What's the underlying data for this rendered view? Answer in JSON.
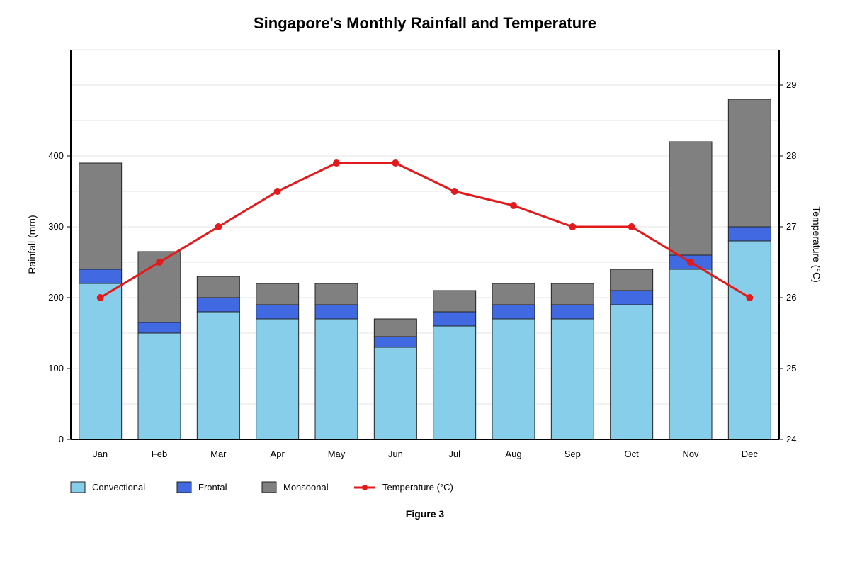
{
  "chart_data": {
    "type": "bar",
    "stacked": true,
    "title": "Singapore's Monthly Rainfall and Temperature",
    "caption": "Figure 3",
    "categories": [
      "Jan",
      "Feb",
      "Mar",
      "Apr",
      "May",
      "Jun",
      "Jul",
      "Aug",
      "Sep",
      "Oct",
      "Nov",
      "Dec"
    ],
    "ylabel": "Rainfall (mm)",
    "y2label": "Temperature (°C)",
    "ylim": [
      0,
      550
    ],
    "y2lim": [
      24,
      29.5
    ],
    "yticks": [
      0,
      100,
      200,
      300,
      400
    ],
    "y2ticks": [
      24,
      25,
      26,
      27,
      28,
      29
    ],
    "grid": true,
    "legend_position": "bottom-left",
    "series": [
      {
        "name": "Convectional",
        "kind": "bar",
        "color": "#87CEEB",
        "values": [
          220,
          150,
          180,
          170,
          170,
          130,
          160,
          170,
          170,
          190,
          240,
          280
        ]
      },
      {
        "name": "Frontal",
        "kind": "bar",
        "color": "#4169E1",
        "values": [
          20,
          15,
          20,
          20,
          20,
          15,
          20,
          20,
          20,
          20,
          20,
          20
        ]
      },
      {
        "name": "Monsoonal",
        "kind": "bar",
        "color": "#808080",
        "values": [
          150,
          100,
          30,
          30,
          30,
          25,
          30,
          30,
          30,
          30,
          160,
          180
        ]
      },
      {
        "name": "Temperature (°C)",
        "kind": "line",
        "axis": "y2",
        "color": "#E31A1C",
        "values": [
          26,
          26.5,
          27,
          27.5,
          27.9,
          27.9,
          27.5,
          27.3,
          27,
          27,
          26.5,
          26
        ]
      }
    ]
  }
}
